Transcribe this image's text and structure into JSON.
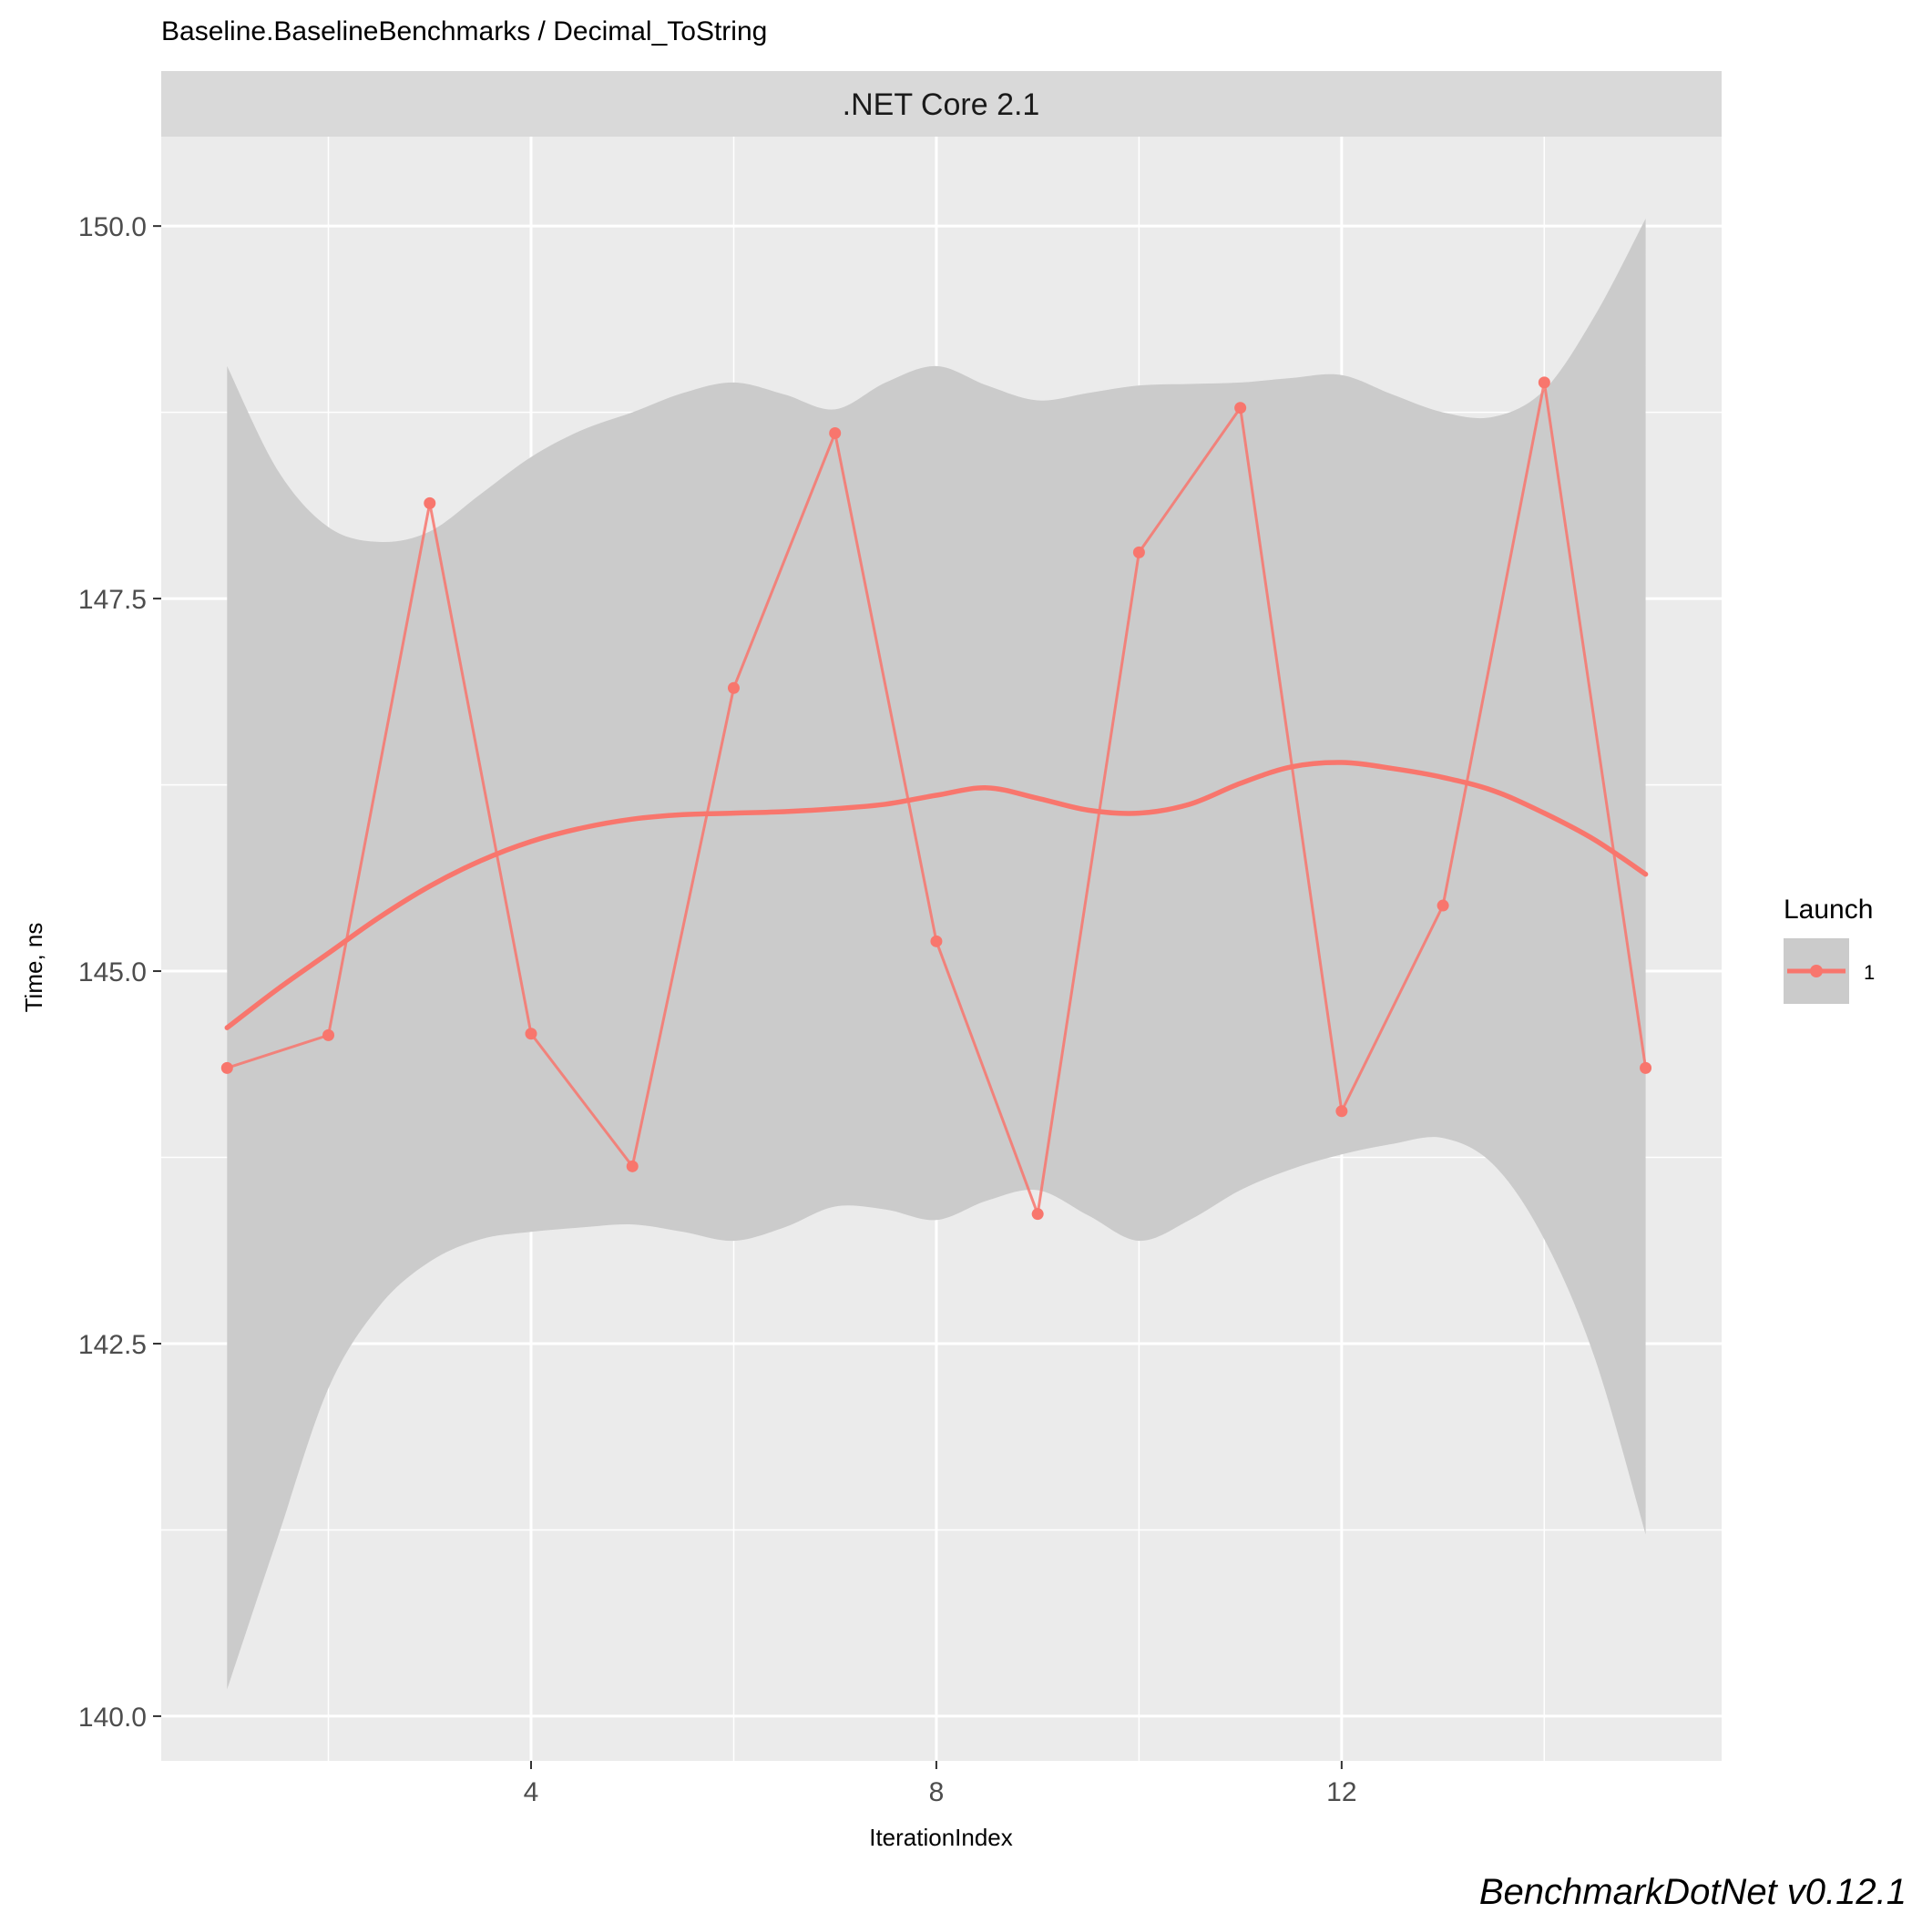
{
  "chart_data": {
    "type": "line",
    "title": "Baseline.BaselineBenchmarks / Decimal_ToString",
    "facet_label": ".NET Core 2.1",
    "xlabel": "IterationIndex",
    "ylabel": "Time, ns",
    "xlim": [
      0.35,
      15.75
    ],
    "ylim": [
      139.7,
      150.6
    ],
    "x_ticks": [
      4,
      8,
      12
    ],
    "x_tick_labels": [
      "4",
      "8",
      "12"
    ],
    "y_ticks": [
      140.0,
      142.5,
      145.0,
      147.5,
      150.0
    ],
    "y_tick_labels": [
      "140.0",
      "142.5",
      "145.0",
      "147.5",
      "150.0"
    ],
    "grid": true,
    "legend": {
      "title": "Launch",
      "position": "right",
      "entries": [
        "1"
      ]
    },
    "colors": {
      "series": "#F8766D",
      "ribbon": "#cbcbcb",
      "panel": "#ebebeb",
      "strip": "#d9d9d9",
      "grid": "#ffffff"
    },
    "series": [
      {
        "name": "1",
        "x": [
          1,
          2,
          3,
          4,
          5,
          6,
          7,
          8,
          9,
          10,
          11,
          12,
          13,
          14,
          15
        ],
        "values": [
          144.35,
          144.57,
          148.14,
          144.58,
          143.69,
          146.9,
          148.61,
          145.2,
          143.37,
          147.81,
          148.78,
          144.06,
          145.44,
          148.95,
          144.35
        ]
      }
    ],
    "smooth": {
      "x": [
        1,
        1.5,
        2,
        2.5,
        3,
        3.5,
        4,
        4.5,
        5,
        5.5,
        6,
        6.5,
        7,
        7.5,
        8,
        8.5,
        9,
        9.5,
        10,
        10.5,
        11,
        11.5,
        12,
        12.5,
        13,
        13.5,
        14,
        14.5,
        15
      ],
      "y": [
        144.62,
        144.88,
        145.12,
        145.36,
        145.57,
        145.74,
        145.87,
        145.96,
        146.02,
        146.05,
        146.06,
        146.07,
        146.09,
        146.12,
        146.18,
        146.23,
        146.16,
        146.08,
        146.06,
        146.12,
        146.26,
        146.37,
        146.4,
        146.36,
        146.3,
        146.21,
        146.06,
        145.88,
        145.65
      ],
      "lower": [
        140.18,
        141.2,
        142.2,
        142.75,
        143.05,
        143.2,
        143.25,
        143.28,
        143.3,
        143.25,
        143.19,
        143.28,
        143.42,
        143.4,
        143.33,
        143.46,
        143.53,
        143.36,
        143.19,
        143.33,
        143.53,
        143.67,
        143.77,
        143.84,
        143.88,
        143.7,
        143.2,
        142.4,
        141.22
      ],
      "upper": [
        149.06,
        148.36,
        147.98,
        147.88,
        147.95,
        148.2,
        148.45,
        148.63,
        148.75,
        148.88,
        148.95,
        148.87,
        148.77,
        148.95,
        149.06,
        148.93,
        148.83,
        148.88,
        148.93,
        148.94,
        148.95,
        148.98,
        149.0,
        148.87,
        148.75,
        148.72,
        148.9,
        149.4,
        150.05
      ]
    }
  }
}
